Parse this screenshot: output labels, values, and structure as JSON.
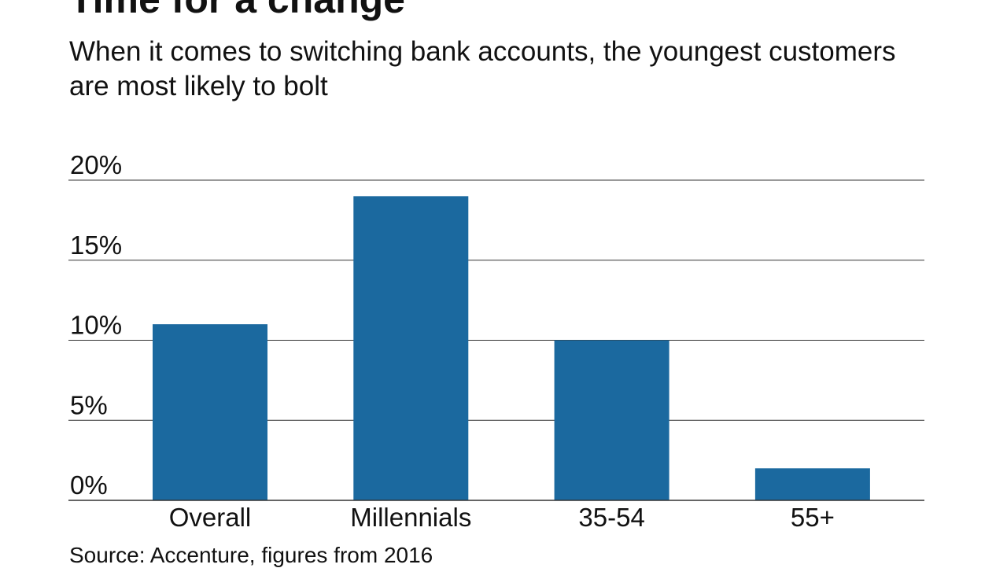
{
  "chart_data": {
    "type": "bar",
    "title": "Time for a change",
    "subtitle": "When it comes to switching bank accounts, the youngest customers are most likely to bolt",
    "source": "Source: Accenture, figures from 2016",
    "categories": [
      "Overall",
      "Millennials",
      "35-54",
      "55+"
    ],
    "values": [
      11,
      19,
      10,
      2
    ],
    "unit": "%",
    "ylim": [
      0,
      20
    ],
    "yticks": [
      0,
      5,
      10,
      15,
      20
    ],
    "ytick_labels": [
      "0%",
      "5%",
      "10%",
      "15%",
      "20%"
    ],
    "grid": true,
    "bar_color": "#1b699f"
  }
}
